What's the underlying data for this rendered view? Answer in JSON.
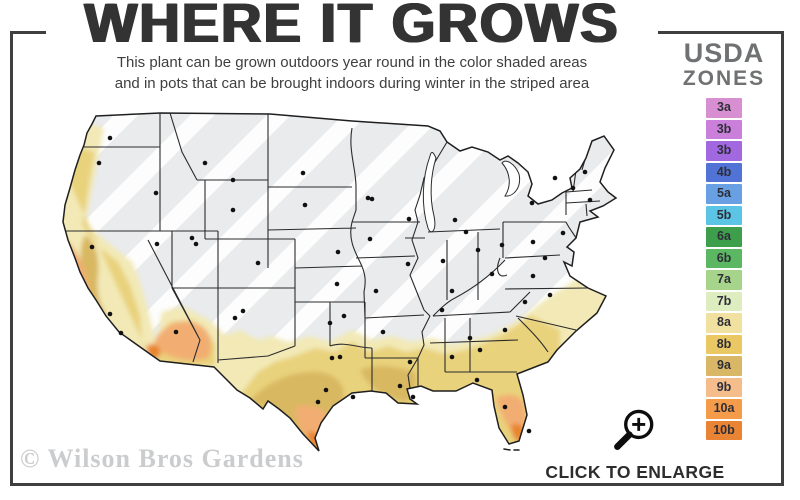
{
  "title": "WHERE IT GROWS",
  "subtitle_line1": "This plant can be grown outdoors year round in the color shaded areas",
  "subtitle_line2": "and in pots that can be brought indoors during winter in the striped area",
  "legend": {
    "title_line1": "USDA",
    "title_line2": "ZONES",
    "zones": [
      {
        "label": "3a",
        "color": "#d88fd2"
      },
      {
        "label": "3b",
        "color": "#ca80db"
      },
      {
        "label": "3b",
        "color": "#a168e0"
      },
      {
        "label": "4b",
        "color": "#5273d6"
      },
      {
        "label": "5a",
        "color": "#68a0e3"
      },
      {
        "label": "5b",
        "color": "#5cc4e4"
      },
      {
        "label": "6a",
        "color": "#3d9e4c"
      },
      {
        "label": "6b",
        "color": "#5cb763"
      },
      {
        "label": "7a",
        "color": "#a5d48a"
      },
      {
        "label": "7b",
        "color": "#ddedc0"
      },
      {
        "label": "8a",
        "color": "#f0e1a0"
      },
      {
        "label": "8b",
        "color": "#eac863"
      },
      {
        "label": "9a",
        "color": "#d9b766"
      },
      {
        "label": "9b",
        "color": "#f5bd8c"
      },
      {
        "label": "10a",
        "color": "#f59c4b"
      },
      {
        "label": "10b",
        "color": "#e98434"
      }
    ]
  },
  "map": {
    "colors": {
      "base": "#e9ebed",
      "stripe": "#ffffff",
      "outline": "#1f1f1f",
      "state_line": "#2b2b2b",
      "pale_yellow": "#f2e9b6",
      "yellow": "#e9d27b",
      "gold": "#d9b862",
      "salmon": "#f2ae72",
      "deep_orange": "#e8842f",
      "lake": "#ffffff",
      "dot": "#111111"
    }
  },
  "footer": {
    "click_to_enlarge": "CLICK TO ENLARGE",
    "watermark": "© Wilson Bros Gardens"
  }
}
